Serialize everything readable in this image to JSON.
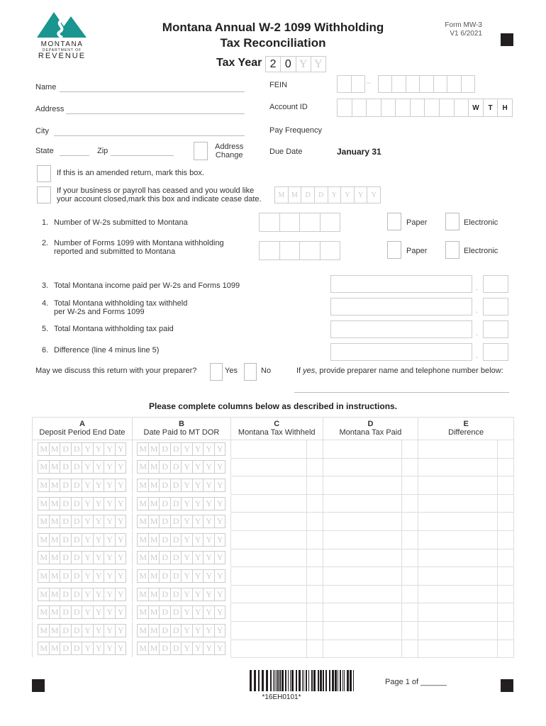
{
  "header": {
    "agency_line1": "MONTANA",
    "agency_line2": "DEPARTMENT OF",
    "agency_line3": "REVENUE",
    "title_line1": "Montana Annual W-2 1099 Withholding",
    "title_line2": "Tax Reconciliation",
    "form_id": "Form MW-3",
    "version": "V1 6/2021",
    "tax_year_label": "Tax Year",
    "tax_year_digits": [
      "2",
      "0",
      "Y",
      "Y"
    ],
    "logo_color": "#1a9590"
  },
  "fields": {
    "name": "Name",
    "address": "Address",
    "city": "City",
    "state": "State",
    "zip": "Zip",
    "address_change_line1": "Address",
    "address_change_line2": "Change",
    "fein": "FEIN",
    "fein_dash": "–",
    "account_id": "Account ID",
    "account_suffix": [
      "W",
      "T",
      "H"
    ],
    "pay_frequency": "Pay Frequency",
    "due_date": "Due Date",
    "due_date_value": "January 31"
  },
  "amended": "If this is an amended return, mark this box.",
  "ceased_line1": "If your business or payroll has ceased and you would like",
  "ceased_line2": "your account closed,mark this box and indicate cease date.",
  "date_placeholder": [
    "M",
    "M",
    "D",
    "D",
    "Y",
    "Y",
    "Y",
    "Y"
  ],
  "lines": [
    {
      "num": "1.",
      "text1": "Number of W-2s submitted to Montana",
      "text2": ""
    },
    {
      "num": "2.",
      "text1": "Number of Forms 1099 with Montana withholding",
      "text2": "reported and submitted to Montana"
    },
    {
      "num": "3.",
      "text1": "Total Montana income paid per W-2s and Forms 1099",
      "text2": ""
    },
    {
      "num": "4.",
      "text1": "Total Montana withholding tax withheld",
      "text2": "per W-2s and Forms 1099"
    },
    {
      "num": "5.",
      "text1": "Total Montana withholding tax paid",
      "text2": ""
    },
    {
      "num": "6.",
      "text1": "Difference (line 4 minus line 5)",
      "text2": ""
    }
  ],
  "paper": "Paper",
  "electronic": "Electronic",
  "decimal": ".",
  "discuss": {
    "question": "May we discuss this return with your preparer?",
    "yes": "Yes",
    "no": "No",
    "note_prefix": "If ",
    "note_em": "yes",
    "note_rest": ", provide preparer name and telephone number below:"
  },
  "table": {
    "instructions": "Please complete columns below as described in instructions.",
    "columns": [
      {
        "letter": "A",
        "label": "Deposit Period End Date"
      },
      {
        "letter": "B",
        "label": "Date Paid to MT DOR"
      },
      {
        "letter": "C",
        "label": "Montana Tax Withheld"
      },
      {
        "letter": "D",
        "label": "Montana Tax Paid"
      },
      {
        "letter": "E",
        "label": "Difference"
      }
    ],
    "row_count": 12
  },
  "footer": {
    "barcode_text": "*16EH0101*",
    "page": "Page 1 of ______"
  }
}
